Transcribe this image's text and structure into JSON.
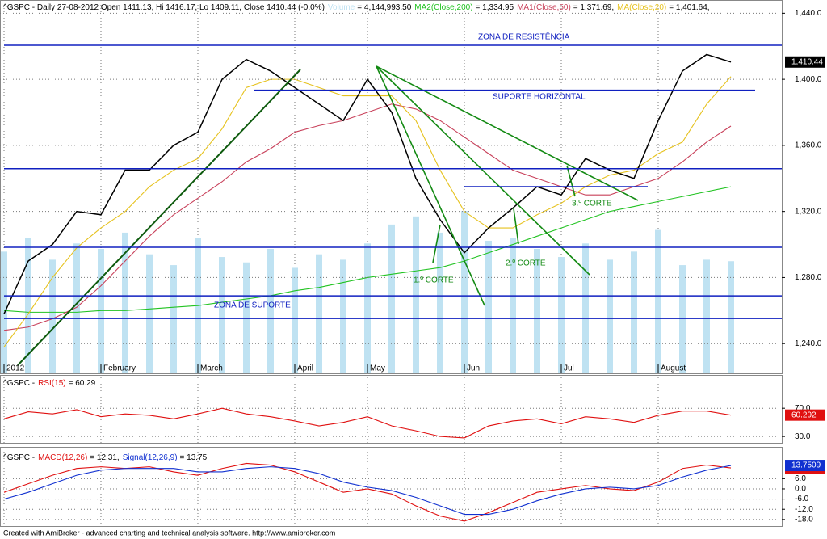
{
  "chart_data": [
    {
      "type": "line",
      "title": "^GSPC - Daily 27-08-2012 Open 1411.13, Hi 1416.17, Lo 1409.11, Close 1410.44 (-0.0%)",
      "categories": [
        "2012",
        null,
        null,
        null,
        "February",
        null,
        null,
        null,
        "March",
        null,
        null,
        null,
        "April",
        null,
        null,
        "May",
        null,
        null,
        null,
        "Jun",
        null,
        null,
        null,
        "Jul",
        null,
        null,
        null,
        "August",
        null,
        null,
        null
      ],
      "ylim": [
        1222,
        1448
      ],
      "yticks": [
        {
          "value": 1240,
          "label": "1,240.0"
        },
        {
          "value": 1280,
          "label": "1,280.0"
        },
        {
          "value": 1320,
          "label": "1,320.0"
        },
        {
          "value": 1360,
          "label": "1,360.0"
        },
        {
          "value": 1400,
          "label": "1,400.0"
        },
        {
          "value": 1440,
          "label": "1,440.0"
        }
      ],
      "y2lim": [
        0,
        13800000
      ],
      "grid": true,
      "series": [
        {
          "name": "Volume",
          "label": "= 4,144,993.50",
          "color": "#bfe2f2",
          "axis": "y2",
          "values": [
            4500000,
            5000000,
            4200000,
            4800000,
            4600000,
            5200000,
            4400000,
            4000000,
            5000000,
            4300000,
            4100000,
            4600000,
            3900000,
            4400000,
            4200000,
            4800000,
            5500000,
            5800000,
            5200000,
            6000000,
            4900000,
            5000000,
            4600000,
            4300000,
            4800000,
            4200000,
            4500000,
            5300000,
            4000000,
            4200000,
            4144993.5
          ]
        },
        {
          "name": "MA2(Close,200)",
          "label": "= 1,334.95",
          "color": "#22c322",
          "values": [
            1260,
            1259,
            1259,
            1259,
            1260,
            1260,
            1261,
            1262,
            1263,
            1265,
            1267,
            1269,
            1272,
            1274,
            1277,
            1280,
            1282,
            1284,
            1286,
            1290,
            1295,
            1300,
            1305,
            1310,
            1315,
            1320,
            1323,
            1326,
            1329,
            1332,
            1334.95
          ]
        },
        {
          "name": "MA1(Close,50)",
          "label": "= 1,371.69,",
          "color": "#c8405a",
          "values": [
            1248,
            1250,
            1255,
            1262,
            1275,
            1290,
            1305,
            1318,
            1328,
            1338,
            1350,
            1358,
            1368,
            1372,
            1375,
            1380,
            1385,
            1382,
            1375,
            1365,
            1355,
            1345,
            1340,
            1335,
            1330,
            1330,
            1335,
            1340,
            1350,
            1362,
            1371.69
          ]
        },
        {
          "name": "MA(Close,20)",
          "label": "= 1,401.64,",
          "color": "#e6c21e",
          "values": [
            1238,
            1258,
            1280,
            1298,
            1310,
            1320,
            1335,
            1345,
            1352,
            1370,
            1395,
            1400,
            1400,
            1395,
            1390,
            1390,
            1390,
            1375,
            1345,
            1320,
            1310,
            1310,
            1318,
            1325,
            1335,
            1342,
            1345,
            1355,
            1362,
            1385,
            1401.64
          ]
        },
        {
          "color": "#000000",
          "last_label": "1,410.44",
          "values": [
            1258,
            1290,
            1300,
            1320,
            1318,
            1345,
            1345,
            1360,
            1368,
            1400,
            1412,
            1405,
            1395,
            1385,
            1375,
            1400,
            1380,
            1340,
            1315,
            1295,
            1310,
            1322,
            1335,
            1330,
            1352,
            1345,
            1340,
            1375,
            1405,
            1415,
            1410.44
          ]
        }
      ],
      "levels": [
        1420.6,
        1393.4,
        1345.9,
        1298.3,
        1268.9,
        1255.2,
        1335
      ],
      "level_color": "#1020c0",
      "annotations": [
        "ZONA DE RESISTÊNCIA",
        "SUPORTE HORIZONTAL",
        "ZONA DE SUPORTE",
        "1.º CORTE",
        "2.º CORTE",
        "3.º CORTE"
      ]
    },
    {
      "type": "line",
      "title": "^GSPC -",
      "ylim": [
        21,
        116
      ],
      "yticks": [
        {
          "value": 30,
          "label": "30.0"
        },
        {
          "value": 70,
          "label": "70.0"
        }
      ],
      "series": [
        {
          "name": "RSI(15)",
          "label": "= 60.29",
          "color": "#e01010",
          "values": [
            55,
            65,
            62,
            68,
            58,
            62,
            60,
            55,
            62,
            70,
            62,
            58,
            52,
            45,
            50,
            58,
            45,
            38,
            30,
            28,
            45,
            52,
            55,
            48,
            58,
            55,
            50,
            60,
            66,
            66,
            60.292
          ]
        }
      ]
    },
    {
      "type": "line",
      "title": "^GSPC -",
      "ylim": [
        -21.4,
        22.8
      ],
      "yticks": [
        {
          "value": -18,
          "label": "-18.0"
        },
        {
          "value": -12,
          "label": "-12.0"
        },
        {
          "value": -6,
          "label": "-6.0"
        },
        {
          "value": 0,
          "label": "0.0"
        },
        {
          "value": 6,
          "label": "6.0"
        }
      ],
      "series": [
        {
          "name": "MACD(12,26)",
          "label": "= 12.31,",
          "color": "#e01010",
          "values": [
            -2,
            3,
            8,
            12,
            13,
            12,
            13,
            10,
            8,
            12,
            15,
            14,
            10,
            4,
            -2,
            0,
            -3,
            -10,
            -16,
            -19,
            -14,
            -8,
            -2,
            0,
            2,
            0,
            -1,
            4,
            12,
            14,
            12.3143
          ]
        },
        {
          "name": "Signal(12,26,9)",
          "label": "= 13.75",
          "color": "#1030d0",
          "values": [
            -6,
            -2,
            3,
            8,
            11,
            12,
            12,
            12,
            10,
            10,
            12,
            13,
            12,
            9,
            4,
            1,
            -1,
            -5,
            -10,
            -15,
            -15,
            -12,
            -7,
            -3,
            0,
            1,
            0,
            2,
            7,
            11,
            13.7509
          ]
        }
      ]
    }
  ],
  "footer": "Created with AmiBroker - advanced charting and technical analysis software. http://www.amibroker.com"
}
